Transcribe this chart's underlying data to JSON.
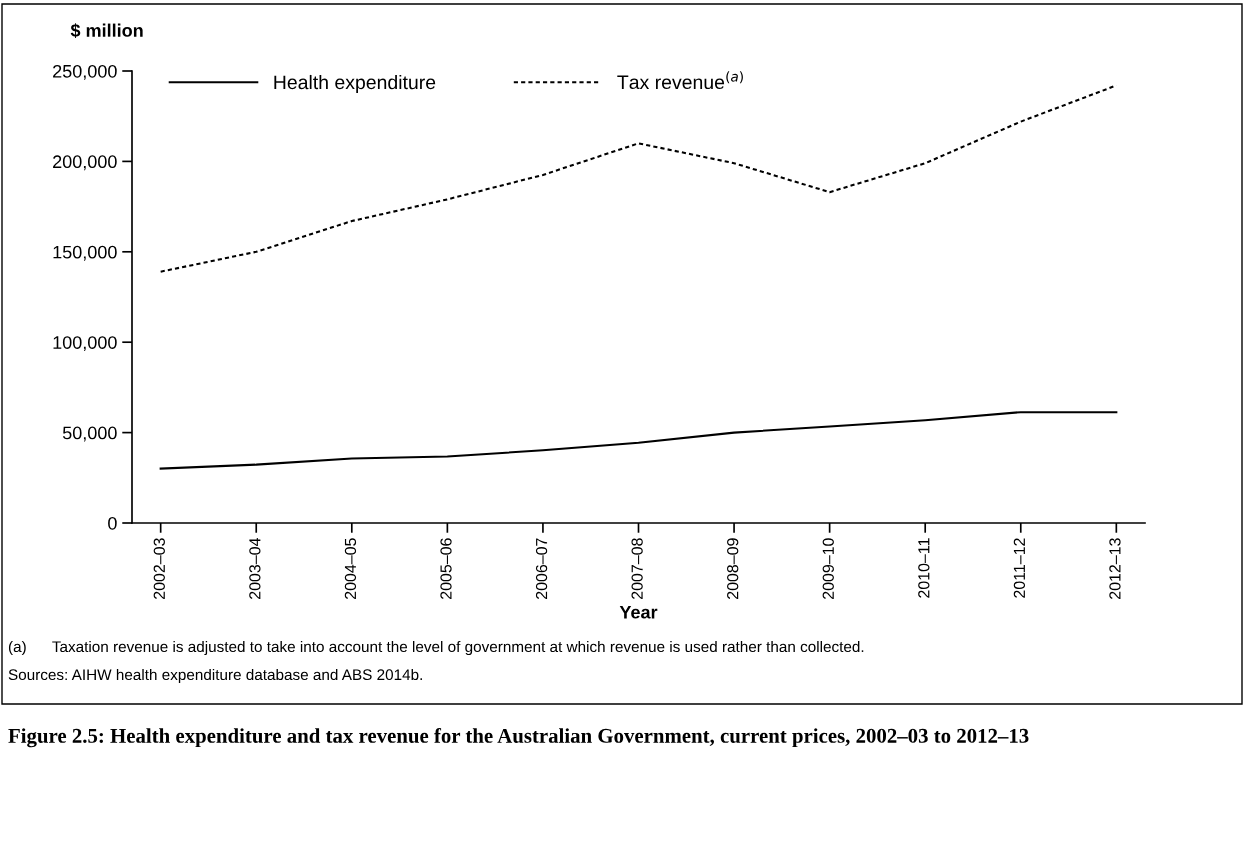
{
  "chart_data": {
    "type": "line",
    "title": "Figure 2.5: Health expenditure and tax revenue for the Australian Government, current prices, 2002–03 to 2012–13",
    "ylabel": "$ million",
    "xlabel": "Year",
    "categories": [
      "2002–03",
      "2003–04",
      "2004–05",
      "2005–06",
      "2006–07",
      "2007–08",
      "2008–09",
      "2009–10",
      "2010–11",
      "2011–12",
      "2012–13"
    ],
    "series": [
      {
        "name": "Health expenditure",
        "color": "#000000",
        "line_style": "solid",
        "values": [
          30100,
          32300,
          35700,
          36800,
          40200,
          44400,
          50000,
          53400,
          56800,
          61300,
          61300
        ]
      },
      {
        "name": "Tax revenue$^{(a)}$",
        "color": "#000000",
        "line_style": "dashed",
        "values": [
          139000,
          150000,
          167000,
          179000,
          192500,
          210000,
          199000,
          183000,
          199000,
          222000,
          242000
        ]
      }
    ],
    "ylim": [
      0,
      250000
    ],
    "yticks": [
      {
        "value": 0,
        "label": "0"
      },
      {
        "value": 50000,
        "label": "50,000"
      },
      {
        "value": 100000,
        "label": "100,000"
      },
      {
        "value": 150000,
        "label": "150,000"
      },
      {
        "value": 200000,
        "label": "200,000"
      },
      {
        "value": 250000,
        "label": "250,000"
      }
    ],
    "grid": false,
    "legend": "top left",
    "marker": "none",
    "annotations": [
      "(a)      Taxation revenue is adjusted to take into account the level of government at which revenue is used rather than collected.",
      "Sources: AIHW health expenditure database and ABS 2014b."
    ]
  }
}
